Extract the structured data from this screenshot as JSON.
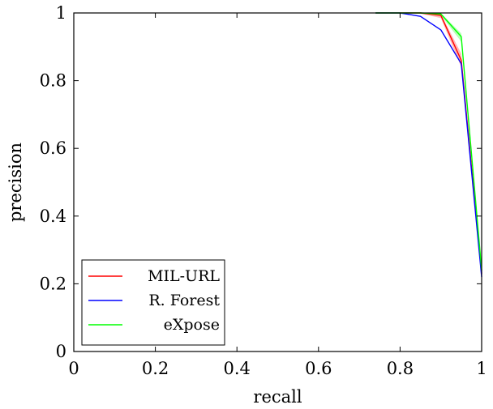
{
  "chart_data": {
    "type": "line",
    "title": "",
    "xlabel": "recall",
    "ylabel": "precision",
    "xlim": [
      0,
      1
    ],
    "ylim": [
      0,
      1
    ],
    "xticks": [
      0,
      0.2,
      0.4,
      0.6,
      0.8,
      1
    ],
    "yticks": [
      0,
      0.2,
      0.4,
      0.6,
      0.8,
      1
    ],
    "xtick_labels": [
      "0",
      "0.2",
      "0.4",
      "0.6",
      "0.8",
      "1"
    ],
    "ytick_labels": [
      "0",
      "0.2",
      "0.4",
      "0.6",
      "0.8",
      "1"
    ],
    "grid": false,
    "legend_position": "bottom-left",
    "series": [
      {
        "name": "MIL-URL",
        "color": "#ff0000",
        "x": [
          0.74,
          0.8,
          0.85,
          0.9,
          0.95,
          1.0
        ],
        "y": [
          1.0,
          1.0,
          1.0,
          0.993,
          0.86,
          0.23
        ],
        "band_upper": [
          1.0,
          1.0,
          1.0,
          0.997,
          0.88,
          0.24
        ],
        "band_lower": [
          1.0,
          1.0,
          0.998,
          0.985,
          0.84,
          0.22
        ]
      },
      {
        "name": "R. Forest",
        "color": "#0000ff",
        "x": [
          0.74,
          0.8,
          0.85,
          0.9,
          0.95,
          1.0
        ],
        "y": [
          1.0,
          1.0,
          0.99,
          0.95,
          0.85,
          0.22
        ]
      },
      {
        "name": "eXpose",
        "color": "#00ff00",
        "x": [
          0.74,
          0.8,
          0.85,
          0.9,
          0.95,
          1.0
        ],
        "y": [
          1.0,
          1.0,
          1.0,
          0.997,
          0.93,
          0.24
        ],
        "band_upper": [
          1.0,
          1.0,
          1.0,
          0.999,
          0.94,
          0.25
        ],
        "band_lower": [
          1.0,
          1.0,
          0.999,
          0.993,
          0.915,
          0.23
        ]
      }
    ]
  }
}
